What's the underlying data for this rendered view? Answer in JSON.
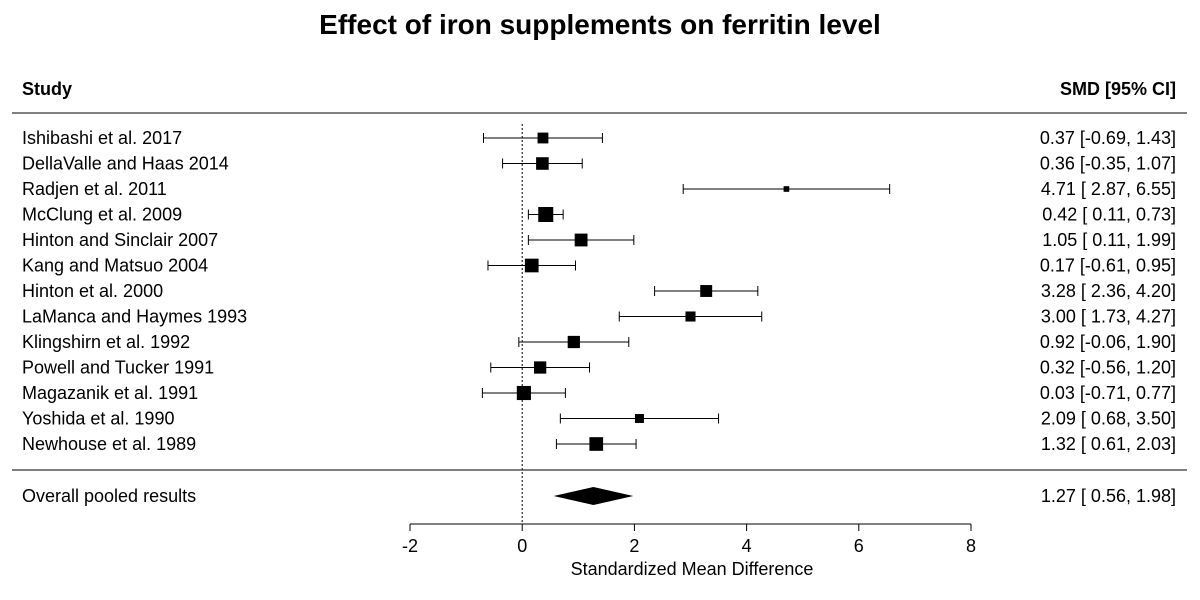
{
  "chart_data": {
    "type": "forest",
    "title": "Effect of iron supplements on ferritin level",
    "column_headers": {
      "study": "Study",
      "effect": "SMD [95% CI]"
    },
    "xlabel": "Standardized Mean Difference",
    "xlim": [
      -2,
      8
    ],
    "x_ticks": [
      -2,
      0,
      2,
      4,
      6,
      8
    ],
    "x_tick_labels": [
      "-2",
      "0",
      "2",
      "4",
      "6",
      "8"
    ],
    "reference_line": 0,
    "studies": [
      {
        "name": "Ishibashi et al. 2017",
        "smd": 0.37,
        "lower": -0.69,
        "upper": 1.43,
        "label": "0.37 [-0.69, 1.43]",
        "weight": 0.62
      },
      {
        "name": "DellaValle and Haas 2014",
        "smd": 0.36,
        "lower": -0.35,
        "upper": 1.07,
        "label": "0.36 [-0.35, 1.07]",
        "weight": 0.78
      },
      {
        "name": "Radjen et al. 2011",
        "smd": 4.71,
        "lower": 2.87,
        "upper": 6.55,
        "label": "4.71 [ 2.87, 6.55]",
        "weight": 0.15
      },
      {
        "name": "McClung et al. 2009",
        "smd": 0.42,
        "lower": 0.11,
        "upper": 0.73,
        "label": "0.42 [ 0.11, 0.73]",
        "weight": 1.0
      },
      {
        "name": "Hinton and Sinclair 2007",
        "smd": 1.05,
        "lower": 0.11,
        "upper": 1.99,
        "label": "1.05 [ 0.11, 1.99]",
        "weight": 0.8
      },
      {
        "name": "Kang and Matsuo 2004",
        "smd": 0.17,
        "lower": -0.61,
        "upper": 0.95,
        "label": "0.17 [-0.61, 0.95]",
        "weight": 0.88
      },
      {
        "name": "Hinton et al. 2000",
        "smd": 3.28,
        "lower": 2.36,
        "upper": 4.2,
        "label": "3.28 [ 2.36, 4.20]",
        "weight": 0.72
      },
      {
        "name": "LaManca and Haymes 1993",
        "smd": 3.0,
        "lower": 1.73,
        "upper": 4.27,
        "label": "3.00 [ 1.73, 4.27]",
        "weight": 0.55
      },
      {
        "name": "Klingshirn et al. 1992",
        "smd": 0.92,
        "lower": -0.06,
        "upper": 1.9,
        "label": "0.92 [-0.06, 1.90]",
        "weight": 0.75
      },
      {
        "name": "Powell and Tucker 1991",
        "smd": 0.32,
        "lower": -0.56,
        "upper": 1.2,
        "label": "0.32 [-0.56, 1.20]",
        "weight": 0.75
      },
      {
        "name": "Magazanik et al. 1991",
        "smd": 0.03,
        "lower": -0.71,
        "upper": 0.77,
        "label": "0.03 [-0.71, 0.77]",
        "weight": 0.92
      },
      {
        "name": "Yoshida et al. 1990",
        "smd": 2.09,
        "lower": 0.68,
        "upper": 3.5,
        "label": "2.09 [ 0.68, 3.50]",
        "weight": 0.45
      },
      {
        "name": "Newhouse et al. 1989",
        "smd": 1.32,
        "lower": 0.61,
        "upper": 2.03,
        "label": "1.32 [ 0.61, 2.03]",
        "weight": 0.88
      }
    ],
    "overall": {
      "name": "Overall pooled results",
      "smd": 1.27,
      "lower": 0.56,
      "upper": 1.98,
      "label": "1.27 [ 0.56, 1.98]"
    }
  }
}
